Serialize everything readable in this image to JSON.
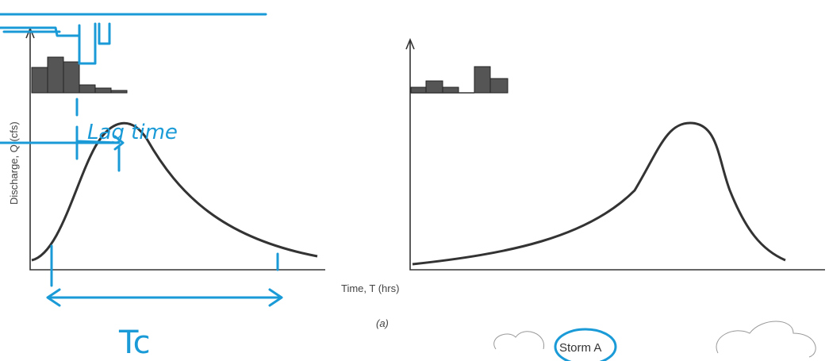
{
  "y_axis_label": "Discharge, Q (cfs)",
  "x_axis_label": "Time, T (hrs)",
  "panel_label": "(a)",
  "storm_label": "Storm A",
  "annotations": {
    "lag_time": "Lag time",
    "tc": "Tc"
  }
}
